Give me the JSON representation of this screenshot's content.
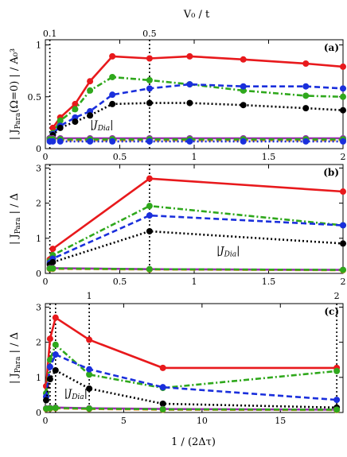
{
  "header": {
    "top_axis_label": "V₀ / t",
    "top_ticks": [
      0.1,
      0.5
    ]
  },
  "footer": {
    "xlabel": "1 / (2Δτ)"
  },
  "colors": {
    "red": "#e8191c",
    "blue": "#1a2fdc",
    "green": "#2fa81c",
    "black": "#000000",
    "purple": "#9a2fb0",
    "orange": "#ff8a1c"
  },
  "chart_data": [
    {
      "type": "line",
      "panel": "(a)",
      "ylabel": "| J_Para(Ω=0) | / A₀³",
      "xlim": [
        0,
        2
      ],
      "ylim": [
        0,
        1.05
      ],
      "xticks": [
        0,
        0.5,
        1,
        1.5,
        2
      ],
      "yticks": [
        0,
        0.5,
        1
      ],
      "vlines": [
        0.03,
        0.7
      ],
      "annotation": "|J_Dia|",
      "series": [
        {
          "color": "red",
          "style": "solid",
          "x": [
            0.03,
            0.05,
            0.1,
            0.2,
            0.3,
            0.45,
            0.7,
            0.97,
            1.33,
            1.75,
            2.0
          ],
          "y": [
            0.1,
            0.2,
            0.3,
            0.43,
            0.65,
            0.89,
            0.87,
            0.89,
            0.86,
            0.82,
            0.79
          ]
        },
        {
          "color": "green",
          "style": "dashdot",
          "x": [
            0.03,
            0.05,
            0.1,
            0.2,
            0.3,
            0.45,
            0.7,
            0.97,
            1.33,
            1.75,
            2.0
          ],
          "y": [
            0.1,
            0.15,
            0.27,
            0.38,
            0.56,
            0.69,
            0.66,
            0.62,
            0.56,
            0.51,
            0.5
          ]
        },
        {
          "color": "blue",
          "style": "dashed",
          "x": [
            0.03,
            0.05,
            0.1,
            0.2,
            0.3,
            0.45,
            0.7,
            0.97,
            1.33,
            1.75,
            2.0
          ],
          "y": [
            0.1,
            0.14,
            0.22,
            0.3,
            0.36,
            0.52,
            0.58,
            0.62,
            0.6,
            0.6,
            0.58
          ]
        },
        {
          "color": "black",
          "style": "dotted",
          "x": [
            0.03,
            0.05,
            0.1,
            0.2,
            0.3,
            0.45,
            0.7,
            0.97,
            1.33,
            1.75,
            2.0
          ],
          "y": [
            0.1,
            0.13,
            0.2,
            0.26,
            0.32,
            0.43,
            0.44,
            0.44,
            0.42,
            0.39,
            0.37
          ]
        },
        {
          "color": "purple",
          "style": "solid",
          "x": [
            0.03,
            0.05,
            0.1,
            0.3,
            0.45,
            0.7,
            0.97,
            1.33,
            1.75,
            2.0
          ],
          "y": [
            0.1,
            0.1,
            0.1,
            0.1,
            0.1,
            0.1,
            0.1,
            0.1,
            0.1,
            0.1
          ]
        },
        {
          "color": "orange",
          "style": "dashed",
          "x": [
            0.03,
            0.05,
            0.1,
            0.3,
            0.45,
            0.7,
            0.97,
            1.33,
            1.75,
            2.0
          ],
          "y": [
            0.08,
            0.08,
            0.08,
            0.08,
            0.08,
            0.08,
            0.08,
            0.08,
            0.08,
            0.08
          ]
        },
        {
          "color": "green",
          "style": "dashed",
          "x": [
            0.03,
            0.05,
            0.1,
            0.3,
            0.45,
            0.7,
            0.97,
            1.33,
            1.75,
            2.0
          ],
          "y": [
            0.09,
            0.09,
            0.09,
            0.09,
            0.09,
            0.09,
            0.09,
            0.09,
            0.09,
            0.09
          ]
        },
        {
          "color": "blue",
          "style": "dotted",
          "x": [
            0.03,
            0.05,
            0.1,
            0.3,
            0.45,
            0.7,
            0.97,
            1.33,
            1.75,
            2.0
          ],
          "y": [
            0.07,
            0.07,
            0.07,
            0.07,
            0.07,
            0.07,
            0.07,
            0.07,
            0.07,
            0.07
          ]
        }
      ]
    },
    {
      "type": "line",
      "panel": "(b)",
      "ylabel": "| J_Para | / Δ",
      "xlim": [
        0,
        2
      ],
      "ylim": [
        0,
        3.1
      ],
      "xticks": [
        0,
        0.5,
        1,
        1.5,
        2
      ],
      "yticks": [
        0,
        1,
        2,
        3
      ],
      "vlines": [
        0.03,
        0.7
      ],
      "annotation": "|J_Dia|",
      "series": [
        {
          "color": "red",
          "style": "solid",
          "x": [
            0.03,
            0.05,
            0.7,
            2.0
          ],
          "y": [
            0.4,
            0.7,
            2.7,
            2.33
          ]
        },
        {
          "color": "green",
          "style": "dashdot",
          "x": [
            0.03,
            0.05,
            0.7,
            2.0
          ],
          "y": [
            0.35,
            0.52,
            1.92,
            1.37
          ]
        },
        {
          "color": "blue",
          "style": "dashed",
          "x": [
            0.03,
            0.05,
            0.7,
            2.0
          ],
          "y": [
            0.3,
            0.42,
            1.65,
            1.37
          ]
        },
        {
          "color": "black",
          "style": "dotted",
          "x": [
            0.03,
            0.05,
            0.7,
            2.0
          ],
          "y": [
            0.25,
            0.32,
            1.2,
            0.85
          ]
        },
        {
          "color": "purple",
          "style": "solid",
          "x": [
            0.03,
            0.05,
            0.7,
            2.0
          ],
          "y": [
            0.15,
            0.15,
            0.12,
            0.1
          ]
        },
        {
          "color": "orange",
          "style": "dashed",
          "x": [
            0.03,
            0.05,
            0.7,
            2.0
          ],
          "y": [
            0.13,
            0.13,
            0.11,
            0.09
          ]
        },
        {
          "color": "green",
          "style": "dashed",
          "x": [
            0.03,
            0.05,
            0.7,
            2.0
          ],
          "y": [
            0.14,
            0.14,
            0.12,
            0.1
          ]
        }
      ]
    },
    {
      "type": "line",
      "panel": "(c)",
      "ylabel": "| J_Para | / Δ",
      "xlim": [
        0,
        19
      ],
      "ylim": [
        0,
        3.1
      ],
      "xticks": [
        0,
        5,
        10,
        15
      ],
      "yticks": [
        0,
        1,
        2,
        3
      ],
      "vlines": [
        0.3,
        0.65,
        2.8,
        18.6
      ],
      "vline_labels": [
        "1",
        "2"
      ],
      "annotation": "|J_Dia|",
      "series": [
        {
          "color": "red",
          "style": "solid",
          "x": [
            0.05,
            0.3,
            0.65,
            2.8,
            7.5,
            18.6
          ],
          "y": [
            0.75,
            2.1,
            2.7,
            2.07,
            1.27,
            1.27
          ]
        },
        {
          "color": "green",
          "style": "dashdot",
          "x": [
            0.05,
            0.3,
            0.65,
            2.8,
            7.5,
            18.6
          ],
          "y": [
            0.55,
            1.5,
            1.93,
            1.08,
            0.7,
            1.18
          ]
        },
        {
          "color": "blue",
          "style": "dashed",
          "x": [
            0.05,
            0.3,
            0.65,
            2.8,
            7.5,
            18.6
          ],
          "y": [
            0.45,
            1.3,
            1.65,
            1.23,
            0.72,
            0.36
          ]
        },
        {
          "color": "black",
          "style": "dotted",
          "x": [
            0.05,
            0.3,
            0.65,
            2.8,
            7.5,
            18.6
          ],
          "y": [
            0.35,
            0.95,
            1.2,
            0.68,
            0.25,
            0.14
          ]
        },
        {
          "color": "purple",
          "style": "solid",
          "x": [
            0.05,
            0.3,
            0.65,
            2.8,
            7.5,
            18.6
          ],
          "y": [
            0.12,
            0.13,
            0.14,
            0.12,
            0.1,
            0.08
          ]
        },
        {
          "color": "orange",
          "style": "dashed",
          "x": [
            0.05,
            0.3,
            0.65,
            2.8,
            7.5,
            18.6
          ],
          "y": [
            0.1,
            0.11,
            0.12,
            0.1,
            0.08,
            0.07
          ]
        },
        {
          "color": "green",
          "style": "dashed",
          "x": [
            0.05,
            0.3,
            0.65,
            2.8,
            7.5,
            18.6
          ],
          "y": [
            0.11,
            0.12,
            0.13,
            0.11,
            0.09,
            0.08
          ]
        }
      ]
    }
  ]
}
